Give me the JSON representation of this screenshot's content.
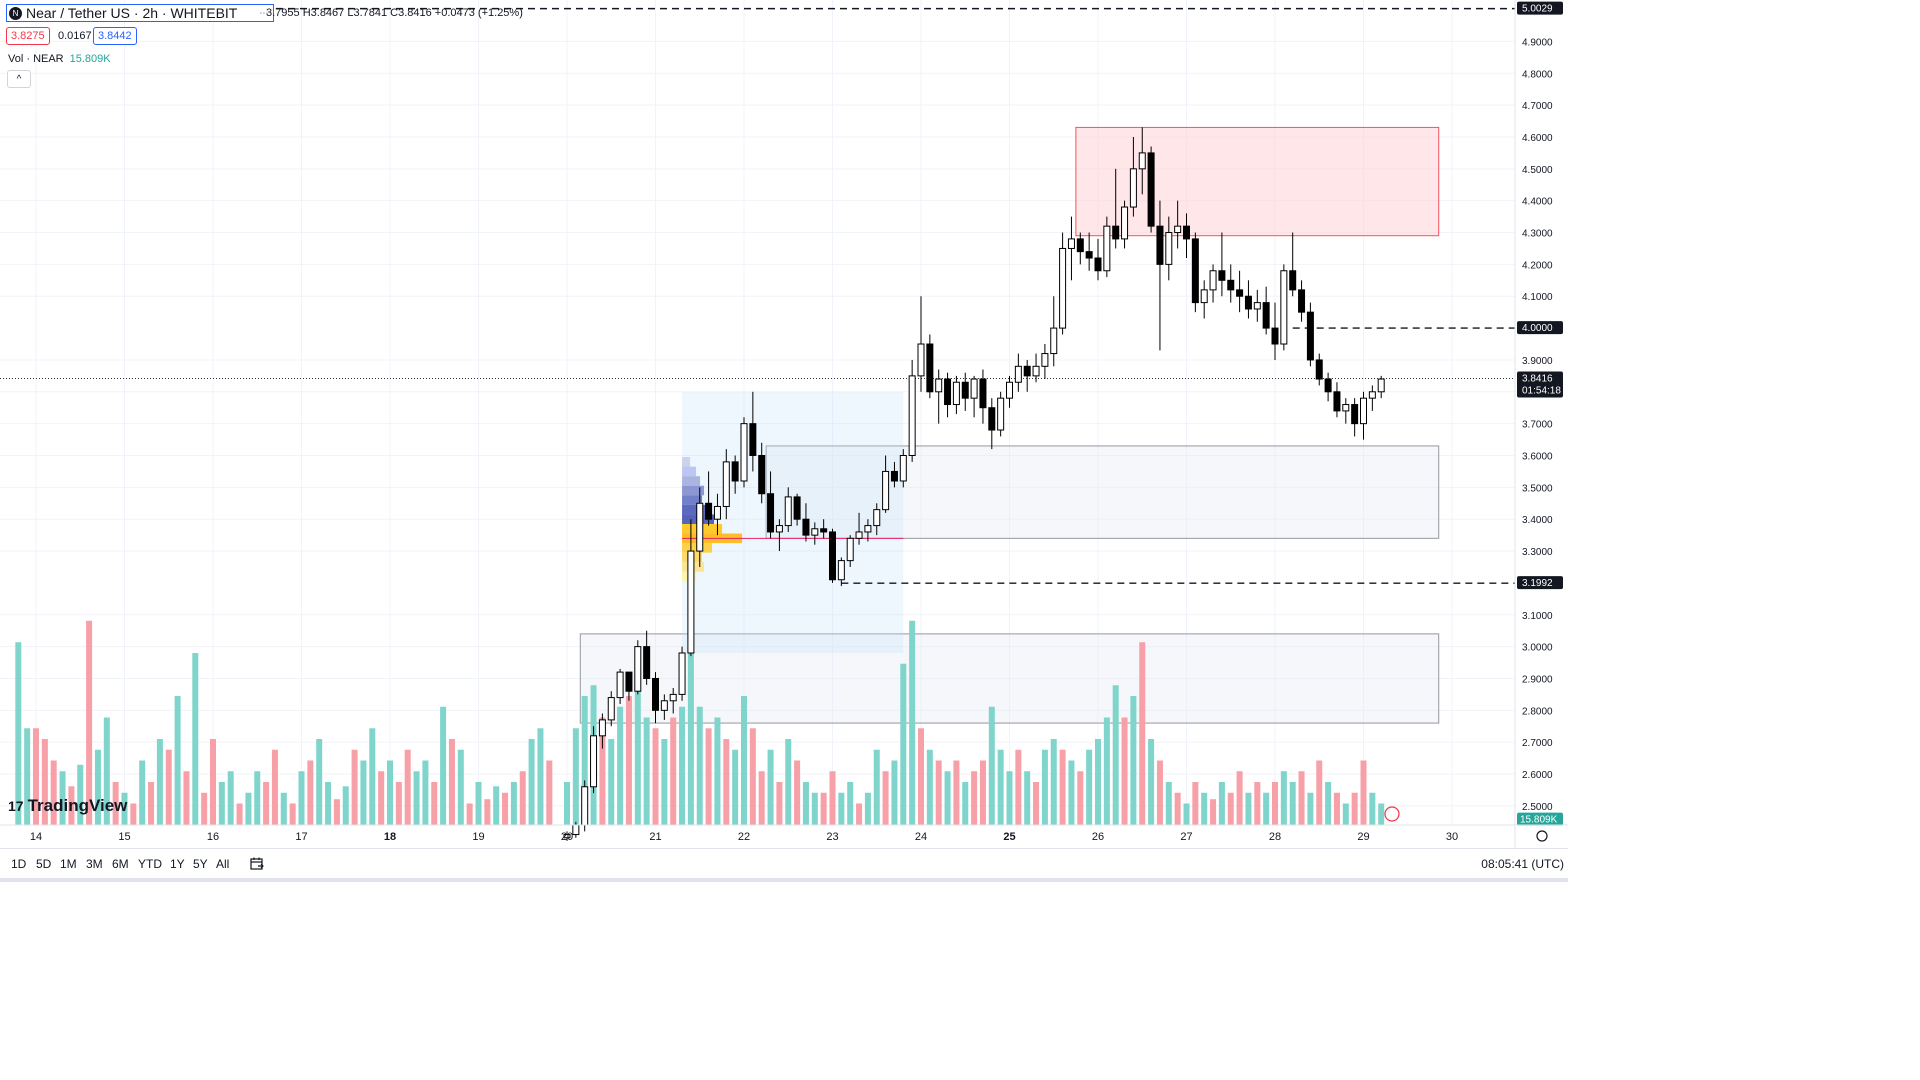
{
  "header": {
    "symbol": "Near / Tether US · 2h · WHITEBIT",
    "logo": "N",
    "ohlc": "3.7955 H3.8467 L3.7841 C3.8416 +0.0473 (+1.25%)",
    "bid": "3.8275",
    "spread": "0.0167",
    "ask": "3.8442",
    "vol_label": "Vol · NEAR",
    "vol_value": "15.809K",
    "collapse": "^"
  },
  "watermark": {
    "logo": "17",
    "text": "TradingView"
  },
  "toolbar": {
    "ranges": [
      "1D",
      "5D",
      "1M",
      "3M",
      "6M",
      "YTD",
      "1Y",
      "5Y",
      "All"
    ],
    "goto_icon": "calendar-icon",
    "clock": "08:05:41 (UTC)"
  },
  "colors": {
    "up": "#ffffff",
    "down": "#000000",
    "vol_up": "#7fd5cb",
    "vol_down": "#f7a0a8",
    "accent": "#2962ff"
  },
  "chart_data": {
    "type": "candlestick",
    "ylim": [
      2.44,
      5.03
    ],
    "y_ticks": [
      "4.9000",
      "4.8000",
      "4.7000",
      "4.6000",
      "4.5000",
      "4.4000",
      "4.3000",
      "4.2000",
      "4.1000",
      "3.9000",
      "3.8000",
      "3.7000",
      "3.6000",
      "3.5000",
      "3.4000",
      "3.3000",
      "3.1000",
      "3.0000",
      "2.9000",
      "2.8000",
      "2.7000",
      "2.6000",
      "2.5000"
    ],
    "x_ticks": [
      "14",
      "15",
      "16",
      "17",
      "18",
      "19",
      "20",
      "21",
      "22",
      "23",
      "24",
      "25",
      "26",
      "27",
      "28",
      "29",
      "30"
    ],
    "x_bold": [
      "18",
      "25"
    ],
    "price_labels": [
      {
        "price": 5.0029,
        "label": "5.0029",
        "style": "dark"
      },
      {
        "price": 4.0,
        "label": "4.0000",
        "style": "dark"
      },
      {
        "price": 3.1992,
        "label": "3.1992",
        "style": "dark"
      },
      {
        "price": 3.8416,
        "label": "3.8416",
        "sub": "01:54:18",
        "style": "dark"
      }
    ],
    "volume_label": "15.809K",
    "hlines": [
      {
        "price": 5.0029,
        "from": 14.0
      },
      {
        "price": 4.0,
        "from": 28.2
      },
      {
        "price": 3.1992,
        "from": 23.1
      }
    ],
    "zones": [
      {
        "x0": 25.75,
        "x1": 29.85,
        "y0": 4.29,
        "y1": 4.63,
        "kind": "supply"
      },
      {
        "x0": 22.25,
        "x1": 29.85,
        "y0": 3.34,
        "y1": 3.63,
        "kind": "demand"
      },
      {
        "x0": 20.15,
        "x1": 29.85,
        "y0": 2.76,
        "y1": 3.04,
        "kind": "demand"
      },
      {
        "x0": 21.3,
        "x1": 23.8,
        "y0": 2.98,
        "y1": 3.8,
        "kind": "profile"
      }
    ],
    "candles": [
      [
        20.0,
        2.4,
        2.42,
        2.39,
        2.41
      ],
      [
        20.1,
        2.41,
        2.45,
        2.4,
        2.44
      ],
      [
        20.2,
        2.44,
        2.58,
        2.42,
        2.56
      ],
      [
        20.3,
        2.56,
        2.75,
        2.54,
        2.72
      ],
      [
        20.4,
        2.72,
        2.79,
        2.68,
        2.77
      ],
      [
        20.5,
        2.77,
        2.86,
        2.75,
        2.84
      ],
      [
        20.6,
        2.84,
        2.93,
        2.82,
        2.92
      ],
      [
        20.7,
        2.92,
        2.9,
        2.83,
        2.86
      ],
      [
        20.8,
        2.86,
        3.02,
        2.85,
        3.0
      ],
      [
        20.9,
        3.0,
        3.05,
        2.88,
        2.9
      ],
      [
        21.0,
        2.9,
        2.92,
        2.76,
        2.8
      ],
      [
        21.1,
        2.8,
        2.85,
        2.77,
        2.83
      ],
      [
        21.2,
        2.83,
        2.87,
        2.79,
        2.85
      ],
      [
        21.3,
        2.85,
        3.0,
        2.83,
        2.98
      ],
      [
        21.4,
        2.98,
        3.4,
        2.97,
        3.3
      ],
      [
        21.5,
        3.3,
        3.5,
        3.25,
        3.45
      ],
      [
        21.6,
        3.45,
        3.55,
        3.38,
        3.4
      ],
      [
        21.7,
        3.4,
        3.48,
        3.35,
        3.44
      ],
      [
        21.8,
        3.44,
        3.62,
        3.4,
        3.58
      ],
      [
        21.9,
        3.58,
        3.6,
        3.48,
        3.52
      ],
      [
        22.0,
        3.52,
        3.72,
        3.5,
        3.7
      ],
      [
        22.1,
        3.7,
        3.8,
        3.55,
        3.6
      ],
      [
        22.2,
        3.6,
        3.64,
        3.45,
        3.48
      ],
      [
        22.3,
        3.48,
        3.55,
        3.34,
        3.36
      ],
      [
        22.4,
        3.36,
        3.4,
        3.3,
        3.38
      ],
      [
        22.5,
        3.38,
        3.5,
        3.36,
        3.47
      ],
      [
        22.6,
        3.47,
        3.48,
        3.38,
        3.4
      ],
      [
        22.7,
        3.4,
        3.45,
        3.33,
        3.35
      ],
      [
        22.8,
        3.35,
        3.39,
        3.32,
        3.37
      ],
      [
        22.9,
        3.37,
        3.4,
        3.34,
        3.36
      ],
      [
        23.0,
        3.36,
        3.37,
        3.2,
        3.21
      ],
      [
        23.1,
        3.21,
        3.28,
        3.19,
        3.27
      ],
      [
        23.2,
        3.27,
        3.35,
        3.25,
        3.34
      ],
      [
        23.3,
        3.34,
        3.42,
        3.32,
        3.36
      ],
      [
        23.4,
        3.36,
        3.4,
        3.33,
        3.38
      ],
      [
        23.5,
        3.38,
        3.45,
        3.35,
        3.43
      ],
      [
        23.6,
        3.43,
        3.6,
        3.42,
        3.55
      ],
      [
        23.7,
        3.55,
        3.58,
        3.5,
        3.52
      ],
      [
        23.8,
        3.52,
        3.62,
        3.5,
        3.6
      ],
      [
        23.9,
        3.6,
        3.9,
        3.58,
        3.85
      ],
      [
        24.0,
        3.85,
        4.1,
        3.8,
        3.95
      ],
      [
        24.1,
        3.95,
        3.98,
        3.78,
        3.8
      ],
      [
        24.2,
        3.8,
        3.87,
        3.7,
        3.84
      ],
      [
        24.3,
        3.84,
        3.86,
        3.72,
        3.76
      ],
      [
        24.4,
        3.76,
        3.85,
        3.73,
        3.83
      ],
      [
        24.5,
        3.83,
        3.86,
        3.74,
        3.78
      ],
      [
        24.6,
        3.78,
        3.85,
        3.72,
        3.84
      ],
      [
        24.7,
        3.84,
        3.87,
        3.7,
        3.75
      ],
      [
        24.8,
        3.75,
        3.78,
        3.62,
        3.68
      ],
      [
        24.9,
        3.68,
        3.8,
        3.66,
        3.78
      ],
      [
        25.0,
        3.78,
        3.85,
        3.75,
        3.83
      ],
      [
        25.1,
        3.83,
        3.92,
        3.8,
        3.88
      ],
      [
        25.2,
        3.88,
        3.9,
        3.8,
        3.85
      ],
      [
        25.3,
        3.85,
        3.92,
        3.83,
        3.88
      ],
      [
        25.4,
        3.88,
        3.95,
        3.84,
        3.92
      ],
      [
        25.5,
        3.92,
        4.1,
        3.88,
        4.0
      ],
      [
        25.6,
        4.0,
        4.3,
        3.98,
        4.25
      ],
      [
        25.7,
        4.25,
        4.35,
        4.15,
        4.28
      ],
      [
        25.8,
        4.28,
        4.3,
        4.2,
        4.24
      ],
      [
        25.9,
        4.24,
        4.3,
        4.18,
        4.22
      ],
      [
        26.0,
        4.22,
        4.28,
        4.15,
        4.18
      ],
      [
        26.1,
        4.18,
        4.35,
        4.16,
        4.32
      ],
      [
        26.2,
        4.32,
        4.5,
        4.25,
        4.28
      ],
      [
        26.3,
        4.28,
        4.4,
        4.25,
        4.38
      ],
      [
        26.4,
        4.38,
        4.6,
        4.35,
        4.5
      ],
      [
        26.5,
        4.5,
        4.63,
        4.42,
        4.55
      ],
      [
        26.6,
        4.55,
        4.57,
        4.3,
        4.32
      ],
      [
        26.7,
        4.32,
        4.4,
        3.93,
        4.2
      ],
      [
        26.8,
        4.2,
        4.35,
        4.15,
        4.3
      ],
      [
        26.9,
        4.3,
        4.4,
        4.25,
        4.32
      ],
      [
        27.0,
        4.32,
        4.36,
        4.22,
        4.28
      ],
      [
        27.1,
        4.28,
        4.3,
        4.05,
        4.08
      ],
      [
        27.2,
        4.08,
        4.15,
        4.03,
        4.12
      ],
      [
        27.3,
        4.12,
        4.2,
        4.08,
        4.18
      ],
      [
        27.4,
        4.18,
        4.3,
        4.1,
        4.15
      ],
      [
        27.5,
        4.15,
        4.2,
        4.08,
        4.12
      ],
      [
        27.6,
        4.12,
        4.18,
        4.05,
        4.1
      ],
      [
        27.7,
        4.1,
        4.15,
        4.03,
        4.06
      ],
      [
        27.8,
        4.06,
        4.12,
        4.02,
        4.08
      ],
      [
        27.9,
        4.08,
        4.13,
        3.98,
        4.0
      ],
      [
        28.0,
        4.0,
        4.08,
        3.9,
        3.95
      ],
      [
        28.1,
        3.95,
        4.2,
        3.93,
        4.18
      ],
      [
        28.2,
        4.18,
        4.3,
        4.1,
        4.12
      ],
      [
        28.3,
        4.12,
        4.15,
        4.02,
        4.05
      ],
      [
        28.4,
        4.05,
        4.08,
        3.88,
        3.9
      ],
      [
        28.5,
        3.9,
        3.92,
        3.82,
        3.84
      ],
      [
        28.6,
        3.84,
        3.86,
        3.77,
        3.8
      ],
      [
        28.7,
        3.8,
        3.83,
        3.72,
        3.74
      ],
      [
        28.8,
        3.74,
        3.78,
        3.7,
        3.76
      ],
      [
        28.9,
        3.76,
        3.78,
        3.66,
        3.7
      ],
      [
        29.0,
        3.7,
        3.8,
        3.65,
        3.78
      ],
      [
        29.1,
        3.78,
        3.82,
        3.74,
        3.8
      ],
      [
        29.2,
        3.8,
        3.85,
        3.78,
        3.84
      ]
    ],
    "volume": [
      [
        13.8,
        0.85,
        1
      ],
      [
        13.9,
        0.45,
        1
      ],
      [
        14.0,
        0.45,
        0
      ],
      [
        14.1,
        0.4,
        0
      ],
      [
        14.2,
        0.3,
        0
      ],
      [
        14.3,
        0.25,
        1
      ],
      [
        14.4,
        0.18,
        0
      ],
      [
        14.5,
        0.28,
        1
      ],
      [
        14.6,
        0.95,
        0
      ],
      [
        14.7,
        0.35,
        1
      ],
      [
        14.8,
        0.5,
        1
      ],
      [
        14.9,
        0.2,
        0
      ],
      [
        15.0,
        0.15,
        1
      ],
      [
        15.1,
        0.1,
        0
      ],
      [
        15.2,
        0.3,
        1
      ],
      [
        15.3,
        0.2,
        0
      ],
      [
        15.4,
        0.4,
        1
      ],
      [
        15.5,
        0.35,
        0
      ],
      [
        15.6,
        0.6,
        1
      ],
      [
        15.7,
        0.25,
        0
      ],
      [
        15.8,
        0.8,
        1
      ],
      [
        15.9,
        0.15,
        0
      ],
      [
        16.0,
        0.4,
        0
      ],
      [
        16.1,
        0.2,
        1
      ],
      [
        16.2,
        0.25,
        1
      ],
      [
        16.3,
        0.1,
        0
      ],
      [
        16.4,
        0.15,
        1
      ],
      [
        16.5,
        0.25,
        1
      ],
      [
        16.6,
        0.2,
        0
      ],
      [
        16.7,
        0.35,
        0
      ],
      [
        16.8,
        0.15,
        1
      ],
      [
        16.9,
        0.1,
        0
      ],
      [
        17.0,
        0.25,
        1
      ],
      [
        17.1,
        0.3,
        0
      ],
      [
        17.2,
        0.4,
        1
      ],
      [
        17.3,
        0.2,
        1
      ],
      [
        17.4,
        0.12,
        0
      ],
      [
        17.5,
        0.18,
        1
      ],
      [
        17.6,
        0.35,
        0
      ],
      [
        17.7,
        0.3,
        1
      ],
      [
        17.8,
        0.45,
        1
      ],
      [
        17.9,
        0.25,
        0
      ],
      [
        18.0,
        0.3,
        1
      ],
      [
        18.1,
        0.2,
        0
      ],
      [
        18.2,
        0.35,
        0
      ],
      [
        18.3,
        0.25,
        1
      ],
      [
        18.4,
        0.3,
        1
      ],
      [
        18.5,
        0.2,
        0
      ],
      [
        18.6,
        0.55,
        1
      ],
      [
        18.7,
        0.4,
        0
      ],
      [
        18.8,
        0.35,
        1
      ],
      [
        18.9,
        0.1,
        0
      ],
      [
        19.0,
        0.2,
        1
      ],
      [
        19.1,
        0.12,
        0
      ],
      [
        19.2,
        0.18,
        1
      ],
      [
        19.3,
        0.15,
        0
      ],
      [
        19.4,
        0.2,
        1
      ],
      [
        19.5,
        0.25,
        0
      ],
      [
        19.6,
        0.4,
        1
      ],
      [
        19.7,
        0.45,
        1
      ],
      [
        19.8,
        0.3,
        0
      ],
      [
        20.0,
        0.2,
        1
      ],
      [
        20.1,
        0.45,
        1
      ],
      [
        20.2,
        0.6,
        1
      ],
      [
        20.3,
        0.65,
        1
      ],
      [
        20.4,
        0.5,
        0
      ],
      [
        20.5,
        0.4,
        1
      ],
      [
        20.6,
        0.55,
        1
      ],
      [
        20.7,
        0.6,
        0
      ],
      [
        20.8,
        0.75,
        1
      ],
      [
        20.9,
        0.5,
        1
      ],
      [
        21.0,
        0.45,
        0
      ],
      [
        21.1,
        0.4,
        1
      ],
      [
        21.2,
        0.5,
        0
      ],
      [
        21.3,
        0.55,
        1
      ],
      [
        21.4,
        0.95,
        1
      ],
      [
        21.5,
        0.55,
        1
      ],
      [
        21.6,
        0.45,
        0
      ],
      [
        21.7,
        0.5,
        1
      ],
      [
        21.8,
        0.4,
        0
      ],
      [
        21.9,
        0.35,
        1
      ],
      [
        22.0,
        0.6,
        1
      ],
      [
        22.1,
        0.45,
        0
      ],
      [
        22.2,
        0.25,
        0
      ],
      [
        22.3,
        0.35,
        1
      ],
      [
        22.4,
        0.2,
        0
      ],
      [
        22.5,
        0.4,
        1
      ],
      [
        22.6,
        0.3,
        0
      ],
      [
        22.7,
        0.2,
        1
      ],
      [
        22.8,
        0.15,
        1
      ],
      [
        22.9,
        0.15,
        0
      ],
      [
        23.0,
        0.25,
        0
      ],
      [
        23.1,
        0.15,
        1
      ],
      [
        23.2,
        0.2,
        1
      ],
      [
        23.3,
        0.1,
        0
      ],
      [
        23.4,
        0.15,
        1
      ],
      [
        23.5,
        0.35,
        1
      ],
      [
        23.6,
        0.25,
        0
      ],
      [
        23.7,
        0.3,
        1
      ],
      [
        23.8,
        0.75,
        1
      ],
      [
        23.9,
        0.95,
        1
      ],
      [
        24.0,
        0.45,
        0
      ],
      [
        24.1,
        0.35,
        1
      ],
      [
        24.2,
        0.3,
        0
      ],
      [
        24.3,
        0.25,
        1
      ],
      [
        24.4,
        0.3,
        0
      ],
      [
        24.5,
        0.2,
        1
      ],
      [
        24.6,
        0.25,
        0
      ],
      [
        24.7,
        0.3,
        0
      ],
      [
        24.8,
        0.55,
        1
      ],
      [
        24.9,
        0.35,
        1
      ],
      [
        25.0,
        0.25,
        1
      ],
      [
        25.1,
        0.35,
        0
      ],
      [
        25.2,
        0.25,
        1
      ],
      [
        25.3,
        0.2,
        0
      ],
      [
        25.4,
        0.35,
        1
      ],
      [
        25.5,
        0.4,
        1
      ],
      [
        25.6,
        0.35,
        0
      ],
      [
        25.7,
        0.3,
        1
      ],
      [
        25.8,
        0.25,
        0
      ],
      [
        25.9,
        0.35,
        1
      ],
      [
        26.0,
        0.4,
        1
      ],
      [
        26.1,
        0.5,
        1
      ],
      [
        26.2,
        0.65,
        1
      ],
      [
        26.3,
        0.5,
        0
      ],
      [
        26.4,
        0.6,
        1
      ],
      [
        26.5,
        0.85,
        0
      ],
      [
        26.6,
        0.4,
        1
      ],
      [
        26.7,
        0.3,
        0
      ],
      [
        26.8,
        0.2,
        1
      ],
      [
        26.9,
        0.15,
        0
      ],
      [
        27.0,
        0.1,
        1
      ],
      [
        27.1,
        0.2,
        0
      ],
      [
        27.2,
        0.15,
        1
      ],
      [
        27.3,
        0.12,
        0
      ],
      [
        27.4,
        0.2,
        1
      ],
      [
        27.5,
        0.15,
        0
      ],
      [
        27.6,
        0.25,
        0
      ],
      [
        27.7,
        0.15,
        1
      ],
      [
        27.8,
        0.2,
        0
      ],
      [
        27.9,
        0.15,
        1
      ],
      [
        28.0,
        0.2,
        0
      ],
      [
        28.1,
        0.25,
        1
      ],
      [
        28.2,
        0.2,
        1
      ],
      [
        28.3,
        0.25,
        0
      ],
      [
        28.4,
        0.15,
        1
      ],
      [
        28.5,
        0.3,
        0
      ],
      [
        28.6,
        0.2,
        1
      ],
      [
        28.7,
        0.15,
        0
      ],
      [
        28.8,
        0.1,
        1
      ],
      [
        28.9,
        0.15,
        0
      ],
      [
        29.0,
        0.3,
        0
      ],
      [
        29.1,
        0.15,
        1
      ],
      [
        29.2,
        0.1,
        1
      ]
    ]
  }
}
